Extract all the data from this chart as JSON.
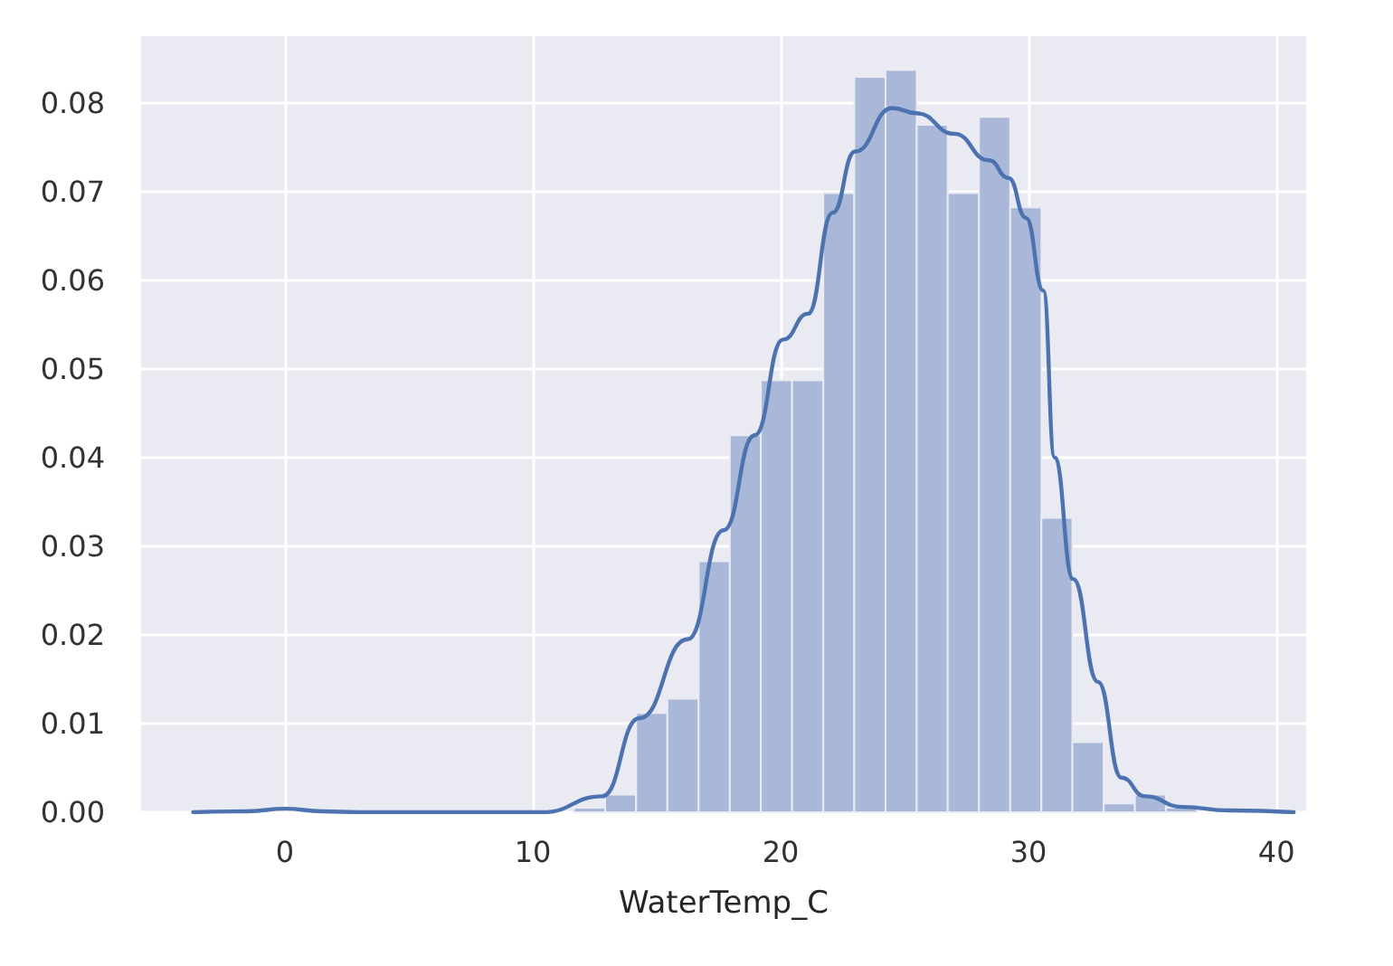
{
  "chart_data": {
    "type": "histogram",
    "xlabel": "WaterTemp_C",
    "xlim": [
      -5.8,
      41.2
    ],
    "xticks": [
      0,
      10,
      20,
      30,
      40
    ],
    "ylim": [
      0,
      0.0875
    ],
    "yticks": [
      {
        "value": 0,
        "label": "0.00"
      },
      {
        "value": 0.01,
        "label": "0.01"
      },
      {
        "value": 0.02,
        "label": "0.02"
      },
      {
        "value": 0.03,
        "label": "0.03"
      },
      {
        "value": 0.04,
        "label": "0.04"
      },
      {
        "value": 0.05,
        "label": "0.05"
      },
      {
        "value": 0.06,
        "label": "0.06"
      },
      {
        "value": 0.07,
        "label": "0.07"
      },
      {
        "value": 0.08,
        "label": "0.08"
      }
    ],
    "grid": true,
    "series": [
      {
        "type": "histogram",
        "color": "#a9b8d8",
        "bins": [
          11.66,
          12.92,
          14.17,
          15.43,
          16.69,
          17.95,
          19.2,
          20.46,
          21.72,
          22.97,
          24.23,
          25.49,
          26.74,
          28.0,
          29.26,
          30.52,
          31.77,
          33.03,
          34.29,
          35.54,
          36.8
        ],
        "values": [
          0.0005,
          0.002,
          0.0112,
          0.0128,
          0.0283,
          0.0425,
          0.0487,
          0.0487,
          0.0698,
          0.0829,
          0.0837,
          0.0775,
          0.0698,
          0.0784,
          0.0682,
          0.0332,
          0.0079,
          0.001,
          0.002,
          0.0005
        ]
      },
      {
        "type": "line",
        "color": "#4c72b0",
        "marker": "none",
        "line_style": "solid",
        "x": [
          -3.7,
          -1.5,
          0,
          1.5,
          3,
          10.4,
          12.8,
          14.3,
          16.25,
          17.7,
          18.95,
          20.1,
          21.1,
          22.1,
          23.0,
          24.5,
          25.5,
          27.0,
          28.4,
          29.2,
          29.9,
          30.6,
          31.05,
          31.8,
          32.8,
          33.75,
          34.7,
          36.2,
          38.1,
          40.7
        ],
        "values": [
          0,
          0.0001,
          0.0004,
          0.0001,
          0,
          0,
          0.0018,
          0.0106,
          0.0195,
          0.0318,
          0.0425,
          0.0533,
          0.0562,
          0.0676,
          0.0745,
          0.0794,
          0.0788,
          0.0765,
          0.0735,
          0.0715,
          0.067,
          0.0588,
          0.04,
          0.0263,
          0.0147,
          0.0039,
          0.0018,
          0.0006,
          0.0002,
          0
        ]
      }
    ]
  }
}
